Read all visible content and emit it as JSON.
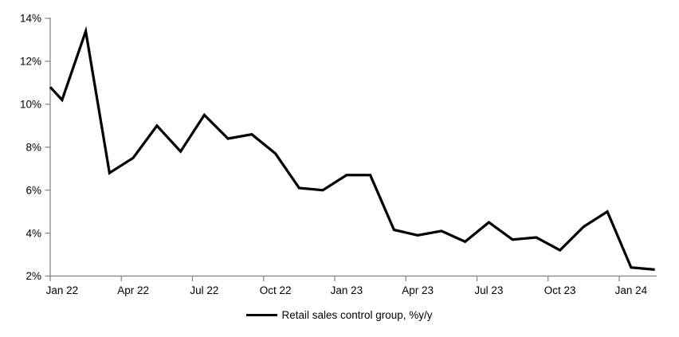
{
  "chart_data": {
    "type": "line",
    "title": "",
    "categories": [
      "Jan 22",
      "Feb 22",
      "Mar 22",
      "Apr 22",
      "May 22",
      "Jun 22",
      "Jul 22",
      "Aug 22",
      "Sep 22",
      "Oct 22",
      "Nov 22",
      "Dec 22",
      "Jan 23",
      "Feb 23",
      "Mar 23",
      "Apr 23",
      "May 23",
      "Jun 23",
      "Jul 23",
      "Aug 23",
      "Sep 23",
      "Oct 23",
      "Nov 23",
      "Dec 23",
      "Jan 24",
      "Feb 24"
    ],
    "series": [
      {
        "name": "Retail sales control group, %y/y",
        "color": "#000000",
        "values": [
          10.2,
          13.4,
          6.8,
          7.5,
          9.0,
          7.8,
          9.5,
          8.4,
          8.6,
          7.7,
          6.1,
          6.0,
          6.7,
          6.7,
          4.15,
          3.9,
          4.1,
          3.6,
          4.5,
          3.7,
          3.8,
          3.2,
          4.3,
          5.0,
          2.4,
          2.3
        ]
      }
    ],
    "lead_in_value_at_left_edge": 10.8,
    "x_axis": {
      "tick_labels": [
        "Jan 22",
        "Apr 22",
        "Jul 22",
        "Oct 22",
        "Jan 23",
        "Apr 23",
        "Jul 23",
        "Oct 23",
        "Jan 24"
      ],
      "label_interval_months": 3
    },
    "y_axis": {
      "min": 2,
      "max": 14,
      "step": 2,
      "tick_labels": [
        "2%",
        "4%",
        "6%",
        "8%",
        "10%",
        "12%",
        "14%"
      ]
    },
    "legend": {
      "label": "Retail sales control group, %y/y",
      "position": "bottom-center",
      "marker": "line"
    },
    "grid": false,
    "colors": {
      "line": "#000000",
      "axis": "#808080",
      "text": "#000000",
      "background": "#ffffff"
    }
  }
}
